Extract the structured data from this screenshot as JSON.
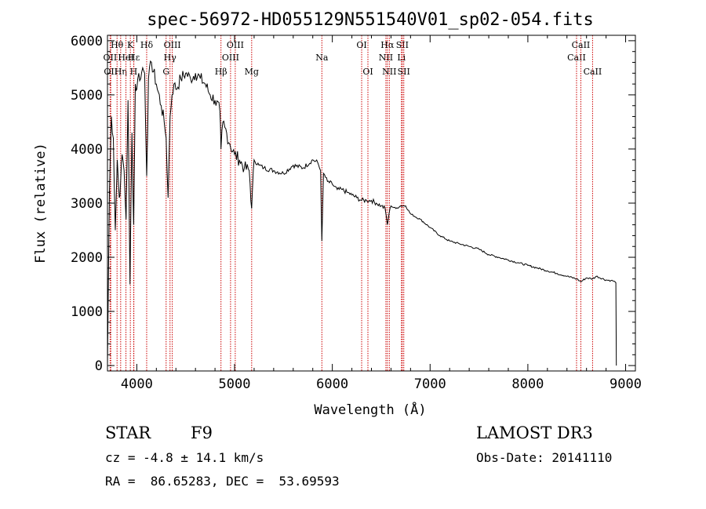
{
  "chart_data": {
    "type": "line",
    "title": "spec-56972-HD055129N551540V01_sp02-054.fits",
    "xlabel": "Wavelength (Å)",
    "ylabel": "Flux (relative)",
    "xlim": [
      3700,
      9100
    ],
    "ylim": [
      -100,
      6100
    ],
    "x_ticks": [
      "4000",
      "5000",
      "6000",
      "7000",
      "8000",
      "9000"
    ],
    "y_ticks": [
      "0",
      "1000",
      "2000",
      "3000",
      "4000",
      "5000",
      "6000"
    ],
    "series": [
      {
        "x": [
          3700,
          3720,
          3740,
          3760,
          3780,
          3800,
          3820,
          3835,
          3850,
          3870,
          3890,
          3910,
          3930,
          3950,
          3968,
          3985,
          4000,
          4020,
          4040,
          4060,
          4080,
          4101,
          4120,
          4150,
          4200,
          4250,
          4280,
          4300,
          4320,
          4340,
          4360,
          4380,
          4400,
          4450,
          4500,
          4550,
          4600,
          4650,
          4700,
          4750,
          4800,
          4850,
          4861,
          4880,
          4900,
          4950,
          5000,
          5050,
          5100,
          5150,
          5175,
          5200,
          5250,
          5300,
          5400,
          5500,
          5600,
          5700,
          5800,
          5850,
          5880,
          5893,
          5910,
          5950,
          6000,
          6050,
          6100,
          6150,
          6200,
          6250,
          6300,
          6350,
          6400,
          6450,
          6500,
          6540,
          6563,
          6580,
          6600,
          6650,
          6700,
          6750,
          6800,
          6900,
          7000,
          7100,
          7200,
          7300,
          7400,
          7500,
          7600,
          7700,
          7800,
          7900,
          8000,
          8100,
          8200,
          8300,
          8400,
          8500,
          8542,
          8600,
          8662,
          8700,
          8800,
          8850,
          8880,
          8900,
          8905
        ],
        "y": [
          0,
          3200,
          4600,
          4200,
          2500,
          3800,
          3100,
          3400,
          3900,
          3600,
          2700,
          4900,
          1500,
          4300,
          2600,
          5200,
          5100,
          5400,
          5300,
          5500,
          5400,
          3500,
          5300,
          5600,
          5200,
          4800,
          4500,
          4200,
          3100,
          4600,
          5000,
          5200,
          5100,
          5300,
          5400,
          5300,
          5400,
          5300,
          5200,
          5000,
          4900,
          4700,
          4000,
          4500,
          4400,
          4100,
          3900,
          3800,
          3650,
          3600,
          2900,
          3800,
          3700,
          3650,
          3600,
          3550,
          3700,
          3650,
          3800,
          3750,
          3600,
          2300,
          3550,
          3400,
          3350,
          3250,
          3250,
          3200,
          3150,
          3100,
          3050,
          3050,
          3050,
          3000,
          2950,
          2900,
          2600,
          2800,
          2950,
          2900,
          2950,
          2950,
          2800,
          2700,
          2550,
          2400,
          2300,
          2250,
          2200,
          2150,
          2050,
          2000,
          1950,
          1900,
          1850,
          1800,
          1750,
          1700,
          1650,
          1600,
          1550,
          1620,
          1600,
          1650,
          1580,
          1570,
          1560,
          1530,
          0
        ]
      }
    ],
    "line_markers": [
      {
        "w": 3727,
        "label": "OII",
        "row": 2
      },
      {
        "w": 3734,
        "label": "OII",
        "row": 3
      },
      {
        "w": 3798,
        "label": "Hθ",
        "row": 1
      },
      {
        "w": 3835,
        "label": "Hη",
        "row": 3
      },
      {
        "w": 3889,
        "label": "HeI",
        "row": 2
      },
      {
        "w": 3934,
        "label": "K",
        "row": 1
      },
      {
        "w": 3968,
        "label": "H",
        "row": 3
      },
      {
        "w": 3970,
        "label": "Hε",
        "row": 2
      },
      {
        "w": 4101,
        "label": "Hδ",
        "row": 1
      },
      {
        "w": 4300,
        "label": "G",
        "row": 3
      },
      {
        "w": 4340,
        "label": "Hγ",
        "row": 2
      },
      {
        "w": 4363,
        "label": "OIII",
        "row": 1
      },
      {
        "w": 4861,
        "label": "Hβ",
        "row": 3
      },
      {
        "w": 4959,
        "label": "OIII",
        "row": 2
      },
      {
        "w": 5007,
        "label": "OIII",
        "row": 1
      },
      {
        "w": 5175,
        "label": "Mg",
        "row": 3
      },
      {
        "w": 5893,
        "label": "Na",
        "row": 2
      },
      {
        "w": 6300,
        "label": "OI",
        "row": 1
      },
      {
        "w": 6364,
        "label": "OI",
        "row": 3
      },
      {
        "w": 6548,
        "label": "NII",
        "row": 2
      },
      {
        "w": 6563,
        "label": "Hα",
        "row": 1
      },
      {
        "w": 6583,
        "label": "NII",
        "row": 3
      },
      {
        "w": 6707,
        "label": "Li",
        "row": 2
      },
      {
        "w": 6716,
        "label": "SII",
        "row": 1
      },
      {
        "w": 6731,
        "label": "SII",
        "row": 3
      },
      {
        "w": 8498,
        "label": "CaII",
        "row": 2
      },
      {
        "w": 8542,
        "label": "CaII",
        "row": 1
      },
      {
        "w": 8662,
        "label": "CaII",
        "row": 3
      }
    ],
    "line_color": "#000000",
    "marker_color": "#cc0000"
  },
  "info": {
    "object_class": "STAR",
    "subclass": "F9",
    "survey": "LAMOST DR3",
    "redshift": "cz = -4.8 ± 14.1 km/s",
    "obs_date": "Obs-Date: 20141110",
    "coords": "RA =  86.65283, DEC =  53.69593"
  }
}
